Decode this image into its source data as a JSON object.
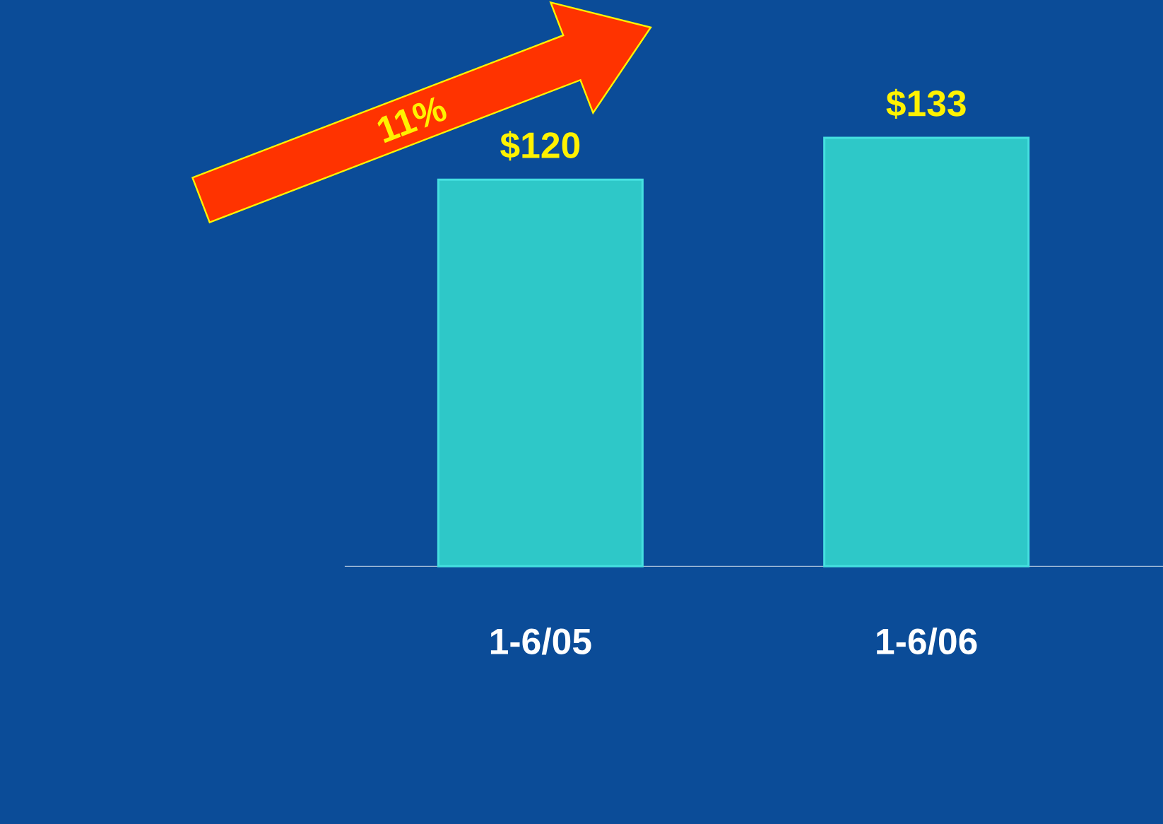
{
  "chart_data": {
    "type": "bar",
    "categories": [
      "1-6/05",
      "1-6/06"
    ],
    "values": [
      120,
      133
    ],
    "value_labels": [
      "$120",
      "$133"
    ],
    "color": "#2ec8c8",
    "annotations": [
      "11%"
    ]
  }
}
